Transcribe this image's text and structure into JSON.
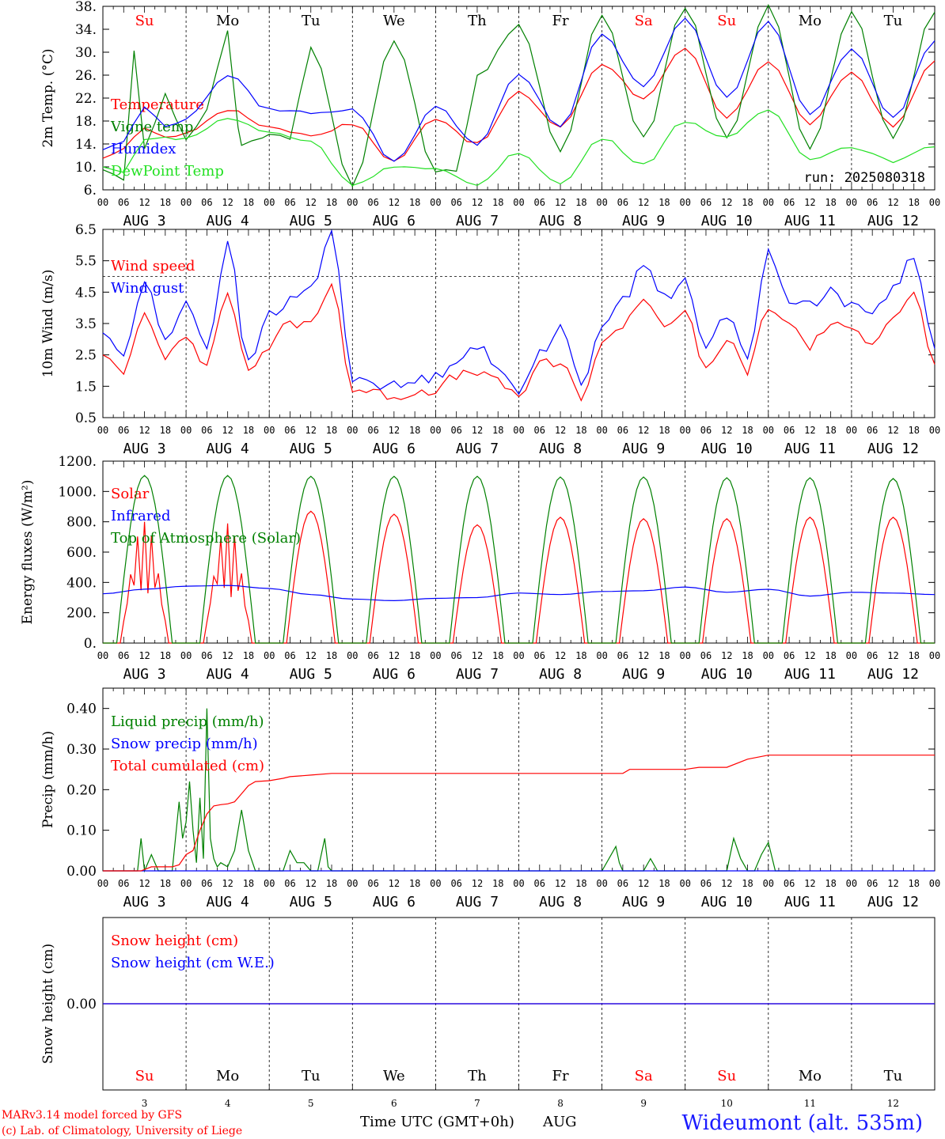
{
  "footer": {
    "model": "MARv3.14 model forced by GFS",
    "credit": "(c) Lab. of Climatology, University of Liege",
    "xlabel": "Time UTC (GMT+0h)",
    "month": "AUG",
    "station": "Wideumont (alt. 535m)"
  },
  "colors": {
    "red": "#ff0000",
    "green": "#008000",
    "blue": "#0000ff",
    "lightgreen": "#22e022"
  },
  "axis": {
    "hour_labels": [
      "00",
      "06",
      "12",
      "18"
    ],
    "end_label": "00",
    "dates": [
      "AUG  3",
      "AUG  4",
      "AUG  5",
      "AUG  6",
      "AUG  7",
      "AUG  8",
      "AUG  9",
      "AUG 10",
      "AUG 11",
      "AUG 12"
    ],
    "weekdays": [
      "Su",
      "Mo",
      "Tu",
      "We",
      "Th",
      "Fr",
      "Sa",
      "Su",
      "Mo",
      "Tu"
    ],
    "weekend_flags": [
      true,
      false,
      false,
      false,
      false,
      false,
      true,
      true,
      false,
      false
    ],
    "day_numbers": [
      "3",
      "4",
      "5",
      "6",
      "7",
      "8",
      "9",
      "10",
      "11",
      "12"
    ]
  },
  "chart_data": [
    {
      "type": "line",
      "ylabel": "2m Temp. (°C)",
      "ytick_labels": [
        "6.",
        "10.",
        "14.",
        "18.",
        "22.",
        "26.",
        "30.",
        "34.",
        "38."
      ],
      "ylim": [
        6,
        38
      ],
      "annotation": "run: 2025080318",
      "series": [
        {
          "name": "Temperature",
          "color": "red",
          "x": [
            0,
            6,
            12,
            18,
            24,
            36,
            48,
            60,
            72,
            84,
            96,
            108,
            120,
            132,
            144,
            156,
            168,
            180,
            192,
            204,
            216,
            228,
            240
          ],
          "values": [
            11.5,
            13,
            17,
            15,
            16,
            20,
            17,
            15.5,
            17.5,
            11,
            18.5,
            14,
            23,
            17,
            28,
            22,
            30.5,
            18.5,
            28.5,
            17.5,
            26.5,
            17,
            28.5
          ]
        },
        {
          "name": "Vigne temp",
          "color": "green",
          "x": [
            0,
            6,
            9,
            12,
            18,
            24,
            30,
            36,
            40,
            48,
            54,
            60,
            72,
            84,
            96,
            102,
            108,
            120,
            132,
            144,
            156,
            168,
            180,
            192,
            204,
            216,
            228,
            240
          ],
          "values": [
            9.5,
            8,
            30,
            13,
            23,
            14.5,
            20,
            34,
            14,
            15.5,
            15,
            31,
            7,
            32,
            9.5,
            9,
            26,
            34.5,
            13,
            36.5,
            15,
            38,
            15,
            38,
            13,
            37,
            15,
            37
          ]
        },
        {
          "name": "Humidex",
          "color": "blue",
          "x": [
            0,
            6,
            12,
            18,
            24,
            36,
            48,
            60,
            72,
            84,
            96,
            108,
            120,
            132,
            144,
            156,
            168,
            180,
            192,
            204,
            216,
            228,
            240
          ],
          "values": [
            13,
            14.5,
            20.5,
            17,
            18.5,
            26,
            20,
            19.5,
            20,
            11,
            20.5,
            14,
            26,
            17,
            33,
            24,
            36,
            22,
            35.5,
            19,
            30.5,
            18.5,
            32
          ]
        },
        {
          "name": "DewPoint Temp",
          "color": "lightgreen",
          "x": [
            0,
            6,
            12,
            18,
            24,
            36,
            48,
            60,
            72,
            84,
            96,
            108,
            120,
            132,
            144,
            156,
            168,
            180,
            192,
            204,
            216,
            228,
            240
          ],
          "values": [
            10,
            9,
            15,
            15,
            15,
            18.5,
            16,
            14.5,
            7,
            10,
            9.5,
            7,
            12.5,
            7,
            15,
            10.5,
            18,
            15,
            20,
            11.5,
            13.5,
            11,
            13.5
          ]
        }
      ]
    },
    {
      "type": "line",
      "ylabel": "10m Wind (m/s)",
      "ytick_labels": [
        "0.5",
        "1.5",
        "2.5",
        "3.5",
        "4.5",
        "5.5",
        "6.5"
      ],
      "ylim": [
        0.5,
        6.5
      ],
      "ref_line": 5,
      "series": [
        {
          "name": "Wind speed",
          "color": "red",
          "x": [
            0,
            6,
            12,
            18,
            24,
            30,
            36,
            42,
            48,
            54,
            60,
            66,
            72,
            84,
            96,
            102,
            108,
            114,
            120,
            126,
            132,
            138,
            144,
            150,
            156,
            162,
            168,
            174,
            180,
            186,
            192,
            198,
            204,
            210,
            216,
            222,
            228,
            234,
            240
          ],
          "values": [
            2.5,
            2,
            3.7,
            2.5,
            3.2,
            2.2,
            4.5,
            2,
            2.8,
            3.5,
            3.5,
            4.8,
            1.4,
            1.2,
            1.4,
            1.8,
            2,
            1.6,
            1.2,
            2.2,
            2.2,
            1.2,
            2.8,
            3.5,
            4.3,
            3.5,
            3.8,
            2,
            3,
            2,
            4,
            3.5,
            2.8,
            3.5,
            3.2,
            3,
            3.8,
            4.4,
            2.2
          ]
        },
        {
          "name": "Wind gust",
          "color": "blue",
          "x": [
            0,
            6,
            12,
            18,
            24,
            30,
            36,
            42,
            48,
            54,
            60,
            66,
            72,
            84,
            96,
            102,
            108,
            114,
            120,
            126,
            132,
            138,
            144,
            150,
            156,
            162,
            168,
            174,
            180,
            186,
            192,
            198,
            204,
            210,
            216,
            222,
            228,
            234,
            240
          ],
          "values": [
            3.2,
            2.5,
            4.8,
            3,
            4.2,
            2.8,
            6,
            2.2,
            3.8,
            4.2,
            4.6,
            6.4,
            1.8,
            1.5,
            1.8,
            2.4,
            2.8,
            2,
            1.4,
            2.6,
            3.3,
            1.6,
            3.5,
            4.2,
            5.5,
            4.3,
            4.8,
            2.7,
            3.8,
            2.5,
            5.7,
            4.3,
            4.1,
            4.6,
            4,
            3.9,
            4.6,
            5.7,
            2.7
          ]
        }
      ]
    },
    {
      "type": "line",
      "ylabel": "Energy fluxes (W/m²)",
      "ytick_labels": [
        "0.",
        "200.",
        "400.",
        "600.",
        "800.",
        "1000.",
        "1200."
      ],
      "ylim": [
        0,
        1200
      ],
      "series": [
        {
          "name": "Solar",
          "color": "red",
          "daily_peaks": [
            800,
            790,
            870,
            850,
            780,
            830,
            820,
            820,
            830,
            830
          ]
        },
        {
          "name": "Infrared",
          "color": "blue",
          "x": [
            0,
            12,
            24,
            36,
            48,
            60,
            72,
            84,
            96,
            108,
            120,
            132,
            144,
            156,
            168,
            180,
            192,
            204,
            216,
            228,
            240
          ],
          "values": [
            325,
            355,
            375,
            380,
            360,
            320,
            290,
            280,
            295,
            300,
            330,
            320,
            340,
            345,
            370,
            335,
            355,
            310,
            335,
            330,
            320
          ]
        },
        {
          "name": "Top of Atmosphere (Solar)",
          "color": "green",
          "daily_peaks": [
            1105,
            1105,
            1100,
            1100,
            1100,
            1095,
            1095,
            1090,
            1090,
            1085
          ]
        }
      ]
    },
    {
      "type": "line",
      "ylabel": "Precip (mm/h)",
      "ytick_labels": [
        "0.00",
        "0.10",
        "0.20",
        "0.30",
        "0.40"
      ],
      "ylim": [
        0,
        0.45
      ],
      "series": [
        {
          "name": "Liquid precip (mm/h)",
          "color": "green",
          "x": [
            0,
            10,
            11,
            12,
            14,
            16,
            20,
            22,
            23,
            24,
            25,
            26,
            27,
            28,
            29,
            30,
            31,
            32,
            33,
            34,
            36,
            38,
            40,
            42,
            44,
            46,
            48,
            50,
            52,
            54,
            56,
            58,
            60,
            62,
            64,
            65,
            66,
            68,
            144,
            148,
            149,
            150,
            156,
            158,
            160,
            180,
            182,
            184,
            186,
            188,
            190,
            192,
            194,
            196,
            198,
            200
          ],
          "values": [
            0,
            0,
            0.08,
            0,
            0.04,
            0,
            0,
            0.17,
            0.08,
            0.12,
            0.22,
            0.1,
            0.02,
            0.18,
            0.03,
            0.4,
            0.08,
            0.03,
            0.01,
            0.02,
            0.01,
            0.05,
            0.15,
            0.05,
            0,
            0,
            0,
            0,
            0,
            0.05,
            0.02,
            0.02,
            0,
            0,
            0.08,
            0.01,
            0,
            0,
            0,
            0.06,
            0.02,
            0,
            0,
            0.03,
            0,
            0,
            0.08,
            0.03,
            0,
            0,
            0.04,
            0.07,
            0,
            0,
            0,
            0
          ]
        },
        {
          "name": "Snow precip (mm/h)",
          "color": "blue",
          "x": [
            0,
            240
          ],
          "values": [
            0,
            0
          ]
        },
        {
          "name": "Total cumulated (cm)",
          "color": "red",
          "x": [
            0,
            11,
            14,
            20,
            22,
            24,
            26,
            28,
            30,
            32,
            34,
            36,
            38,
            40,
            42,
            44,
            48,
            52,
            54,
            60,
            66,
            150,
            152,
            168,
            172,
            180,
            186,
            192,
            240
          ],
          "values": [
            0,
            0,
            0.01,
            0.01,
            0.015,
            0.04,
            0.05,
            0.1,
            0.14,
            0.16,
            0.163,
            0.165,
            0.17,
            0.19,
            0.21,
            0.22,
            0.222,
            0.228,
            0.232,
            0.236,
            0.24,
            0.24,
            0.25,
            0.25,
            0.255,
            0.255,
            0.275,
            0.285,
            0.285
          ]
        }
      ]
    },
    {
      "type": "line",
      "ylabel": "Snow height (cm)",
      "ytick_labels": [
        "0.00"
      ],
      "ylim": [
        -1,
        1
      ],
      "series": [
        {
          "name": "Snow height (cm)",
          "color": "red",
          "x": [
            0,
            240
          ],
          "values": [
            0,
            0
          ]
        },
        {
          "name": "Snow height (cm W.E.)",
          "color": "blue",
          "x": [
            0,
            240
          ],
          "values": [
            0,
            0
          ]
        }
      ]
    }
  ]
}
